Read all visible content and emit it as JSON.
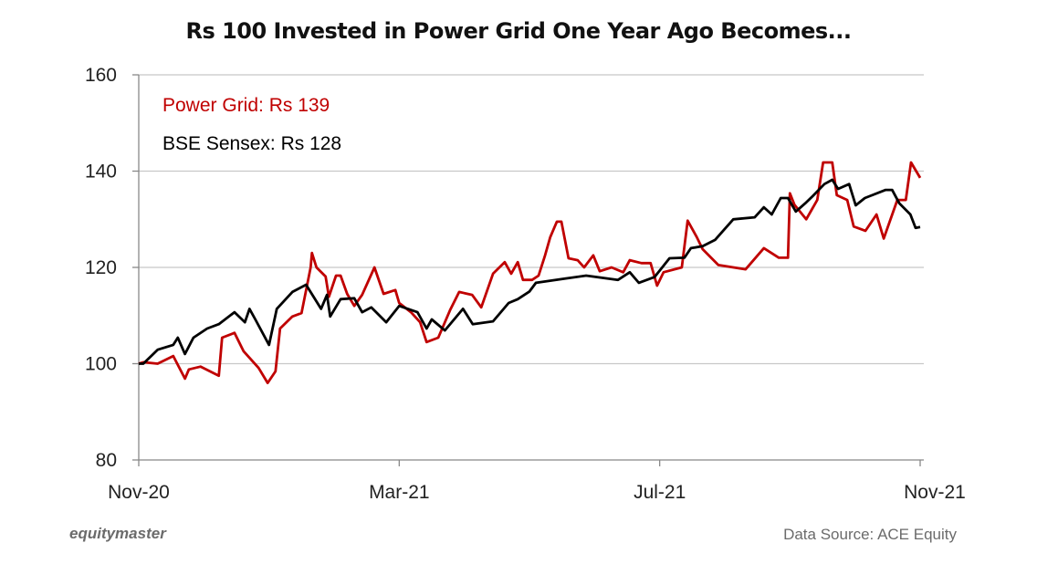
{
  "chart_data": {
    "type": "line",
    "title": "Rs 100 Invested in Power Grid One Year Ago Becomes...",
    "xlabel": "",
    "ylabel": "",
    "x_unit": "months since Nov-20",
    "xlim": [
      0,
      12
    ],
    "ylim": [
      80,
      160
    ],
    "yticks": [
      80,
      100,
      120,
      140,
      160
    ],
    "xticks": [
      {
        "value": 0,
        "label": "Nov-20"
      },
      {
        "value": 4,
        "label": "Mar-21"
      },
      {
        "value": 8,
        "label": "Jul-21"
      },
      {
        "value": 12,
        "label": "Nov-21"
      }
    ],
    "grid": true,
    "legend": [
      {
        "text": "Power Grid: Rs 139",
        "color": "#c00000"
      },
      {
        "text": "BSE Sensex: Rs 128",
        "color": "#000000"
      }
    ],
    "legend_position": "top-left",
    "series": [
      {
        "name": "Power Grid",
        "color": "#c00000",
        "points": [
          [
            0,
            100
          ],
          [
            0.07,
            100.3
          ],
          [
            0.29,
            100
          ],
          [
            0.53,
            101.6
          ],
          [
            0.71,
            96.9
          ],
          [
            0.77,
            98.8
          ],
          [
            0.95,
            99.4
          ],
          [
            1.23,
            97.5
          ],
          [
            1.28,
            105.4
          ],
          [
            1.47,
            106.4
          ],
          [
            1.61,
            102.6
          ],
          [
            1.84,
            99.1
          ],
          [
            1.98,
            96
          ],
          [
            2.1,
            98.4
          ],
          [
            2.17,
            107.3
          ],
          [
            2.36,
            109.8
          ],
          [
            2.5,
            110.5
          ],
          [
            2.64,
            120
          ],
          [
            2.66,
            123
          ],
          [
            2.73,
            120
          ],
          [
            2.87,
            118.1
          ],
          [
            2.92,
            113.9
          ],
          [
            3.03,
            118.3
          ],
          [
            3.1,
            118.3
          ],
          [
            3.2,
            114.5
          ],
          [
            3.31,
            112
          ],
          [
            3.43,
            114.3
          ],
          [
            3.62,
            120
          ],
          [
            3.76,
            114.5
          ],
          [
            3.94,
            115.3
          ],
          [
            4.0,
            112.6
          ],
          [
            4.18,
            110.7
          ],
          [
            4.32,
            108.6
          ],
          [
            4.42,
            104.5
          ],
          [
            4.6,
            105.4
          ],
          [
            4.78,
            111.1
          ],
          [
            4.92,
            114.9
          ],
          [
            5.12,
            114.3
          ],
          [
            5.26,
            111.7
          ],
          [
            5.44,
            118.7
          ],
          [
            5.62,
            121.1
          ],
          [
            5.72,
            118.7
          ],
          [
            5.82,
            121.1
          ],
          [
            5.9,
            117.4
          ],
          [
            6.04,
            117.4
          ],
          [
            6.14,
            118.3
          ],
          [
            6.24,
            122.5
          ],
          [
            6.32,
            126.3
          ],
          [
            6.42,
            129.5
          ],
          [
            6.49,
            129.5
          ],
          [
            6.6,
            121.9
          ],
          [
            6.74,
            121.5
          ],
          [
            6.84,
            120
          ],
          [
            6.98,
            122.5
          ],
          [
            7.08,
            119.2
          ],
          [
            7.26,
            120
          ],
          [
            7.44,
            119
          ],
          [
            7.54,
            121.5
          ],
          [
            7.72,
            120.9
          ],
          [
            7.86,
            120.9
          ],
          [
            7.96,
            116.2
          ],
          [
            8.06,
            119
          ],
          [
            8.34,
            120
          ],
          [
            8.43,
            129.7
          ],
          [
            8.57,
            126.3
          ],
          [
            8.66,
            123.8
          ],
          [
            8.9,
            120.5
          ],
          [
            9.32,
            119.6
          ],
          [
            9.6,
            124
          ],
          [
            9.83,
            122
          ],
          [
            9.97,
            122
          ],
          [
            10.0,
            135.4
          ],
          [
            10.07,
            133
          ],
          [
            10.25,
            130
          ],
          [
            10.42,
            134
          ],
          [
            10.51,
            141.8
          ],
          [
            10.65,
            141.8
          ],
          [
            10.72,
            135
          ],
          [
            10.88,
            134
          ],
          [
            10.98,
            128.5
          ],
          [
            11.16,
            127.6
          ],
          [
            11.33,
            131
          ],
          [
            11.44,
            126
          ],
          [
            11.65,
            134
          ],
          [
            11.78,
            134
          ],
          [
            11.86,
            141.8
          ],
          [
            12.0,
            138.6
          ]
        ]
      },
      {
        "name": "BSE Sensex",
        "color": "#000000",
        "points": [
          [
            0,
            100
          ],
          [
            0.07,
            100
          ],
          [
            0.29,
            102.9
          ],
          [
            0.53,
            103.9
          ],
          [
            0.6,
            105.4
          ],
          [
            0.71,
            102
          ],
          [
            0.84,
            105.4
          ],
          [
            1.05,
            107.3
          ],
          [
            1.23,
            108.2
          ],
          [
            1.47,
            110.7
          ],
          [
            1.63,
            108.6
          ],
          [
            1.7,
            111.4
          ],
          [
            1.79,
            109.2
          ],
          [
            2.0,
            103.9
          ],
          [
            2.12,
            111.4
          ],
          [
            2.36,
            114.9
          ],
          [
            2.57,
            116.4
          ],
          [
            2.8,
            111.4
          ],
          [
            2.89,
            114.3
          ],
          [
            2.94,
            109.8
          ],
          [
            3.1,
            113.4
          ],
          [
            3.31,
            113.6
          ],
          [
            3.43,
            110.7
          ],
          [
            3.57,
            111.7
          ],
          [
            3.8,
            108.6
          ],
          [
            4.0,
            112
          ],
          [
            4.28,
            110.7
          ],
          [
            4.42,
            107.3
          ],
          [
            4.5,
            109.2
          ],
          [
            4.7,
            106.9
          ],
          [
            4.98,
            111.4
          ],
          [
            5.13,
            108.2
          ],
          [
            5.44,
            108.8
          ],
          [
            5.68,
            112.6
          ],
          [
            5.82,
            113.4
          ],
          [
            6.0,
            115
          ],
          [
            6.1,
            116.8
          ],
          [
            6.56,
            117.7
          ],
          [
            6.87,
            118.3
          ],
          [
            7.36,
            117.4
          ],
          [
            7.54,
            119
          ],
          [
            7.68,
            116.8
          ],
          [
            7.92,
            118
          ],
          [
            8.15,
            121.9
          ],
          [
            8.38,
            122
          ],
          [
            8.48,
            124
          ],
          [
            8.66,
            124.4
          ],
          [
            8.85,
            125.7
          ],
          [
            9.13,
            130
          ],
          [
            9.46,
            130.4
          ],
          [
            9.6,
            132.5
          ],
          [
            9.72,
            131
          ],
          [
            9.86,
            134.4
          ],
          [
            9.97,
            134.4
          ],
          [
            10.09,
            131.6
          ],
          [
            10.25,
            133.5
          ],
          [
            10.35,
            134.8
          ],
          [
            10.53,
            137.3
          ],
          [
            10.65,
            138.2
          ],
          [
            10.74,
            136.3
          ],
          [
            10.91,
            137.3
          ],
          [
            11.01,
            132.9
          ],
          [
            11.15,
            134.4
          ],
          [
            11.47,
            136.1
          ],
          [
            11.57,
            136.1
          ],
          [
            11.68,
            133.3
          ],
          [
            11.85,
            131
          ],
          [
            11.93,
            128.2
          ],
          [
            12.0,
            128.4
          ]
        ]
      }
    ]
  },
  "footer": {
    "logo": "equitymaster",
    "source": "Data Source: ACE Equity"
  }
}
